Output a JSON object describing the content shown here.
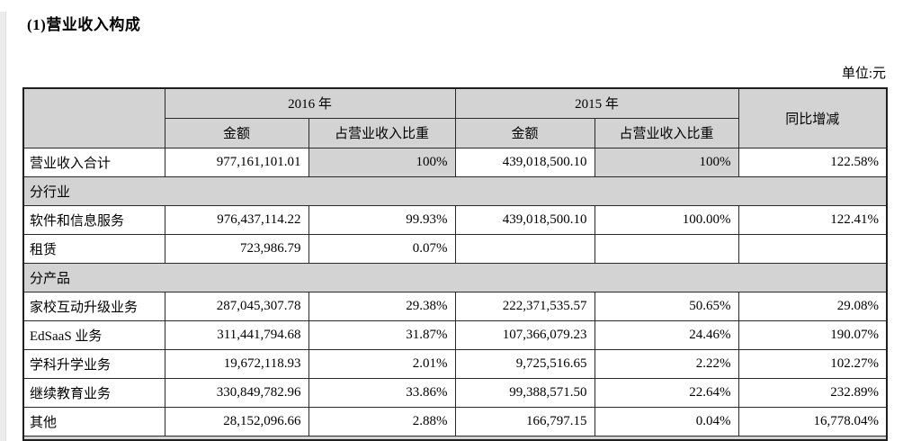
{
  "page": {
    "title": "(1)营业收入构成",
    "unit_label": "单位:元"
  },
  "table": {
    "header": {
      "year_2016": "2016 年",
      "year_2015": "2015 年",
      "yoy": "同比增减",
      "amount": "金额",
      "share": "占营业收入比重"
    },
    "rows": [
      {
        "kind": "data",
        "label": "营业收入合计",
        "values": [
          "977,161,101.01",
          "100%",
          "439,018,500.10",
          "100%",
          "122.58%"
        ],
        "gray_value_indexes": [
          1,
          3
        ]
      },
      {
        "kind": "section",
        "label": "分行业"
      },
      {
        "kind": "data",
        "label": "软件和信息服务",
        "values": [
          "976,437,114.22",
          "99.93%",
          "439,018,500.10",
          "100.00%",
          "122.41%"
        ]
      },
      {
        "kind": "data",
        "label": "租赁",
        "values": [
          "723,986.79",
          "0.07%",
          "",
          "",
          ""
        ]
      },
      {
        "kind": "section",
        "label": "分产品"
      },
      {
        "kind": "data",
        "label": "家校互动升级业务",
        "values": [
          "287,045,307.78",
          "29.38%",
          "222,371,535.57",
          "50.65%",
          "29.08%"
        ]
      },
      {
        "kind": "data",
        "label": "EdSaaS 业务",
        "values": [
          "311,441,794.68",
          "31.87%",
          "107,366,079.23",
          "24.46%",
          "190.07%"
        ]
      },
      {
        "kind": "data",
        "label": "学科升学业务",
        "values": [
          "19,672,118.93",
          "2.01%",
          "9,725,516.65",
          "2.22%",
          "102.27%"
        ]
      },
      {
        "kind": "data",
        "label": "继续教育业务",
        "values": [
          "330,849,782.96",
          "33.86%",
          "99,388,571.50",
          "22.64%",
          "232.89%"
        ]
      },
      {
        "kind": "data",
        "label": "其他",
        "values": [
          "28,152,096.66",
          "2.88%",
          "166,797.15",
          "0.04%",
          "16,778.04%"
        ]
      }
    ]
  },
  "colors": {
    "header_gray": "#d3d3d3",
    "border": "#2a2a2a"
  }
}
